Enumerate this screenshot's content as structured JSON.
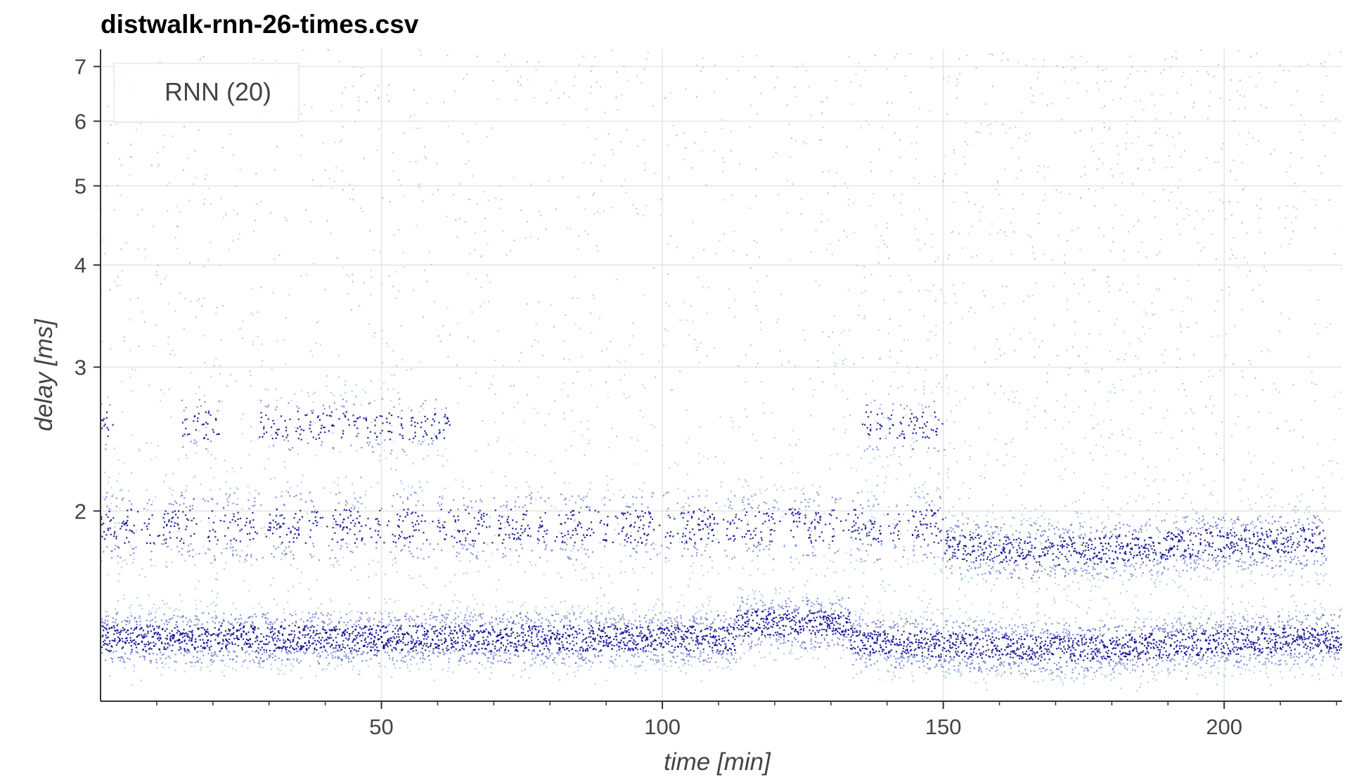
{
  "chart_data": {
    "type": "scatter",
    "title": "distwalk-rnn-26-times.csv",
    "xlabel": "time [min]",
    "ylabel": "delay [ms]",
    "x_scale": "linear",
    "y_scale": "log",
    "xlim": [
      0,
      221
    ],
    "ylim": [
      1.17,
      7.35
    ],
    "x_ticks": [
      50,
      100,
      150,
      200
    ],
    "x_tick_labels": [
      "50",
      "100",
      "150",
      "200"
    ],
    "x_minor_ticks": [
      10,
      20,
      30,
      40,
      60,
      70,
      80,
      90,
      110,
      120,
      130,
      140,
      160,
      170,
      180,
      190,
      210,
      220
    ],
    "y_ticks": [
      2,
      3,
      4,
      5,
      6,
      7
    ],
    "y_tick_labels": [
      "2",
      "3",
      "4",
      "5",
      "6",
      "7"
    ],
    "grid": true,
    "legend": {
      "entries": [
        "RNN (20)"
      ],
      "placement": "top-left"
    },
    "colors": {
      "dense": "#00008b",
      "medium": "#3a4fc0",
      "light": "#7fb7d2",
      "sparse": "#9fd0e3",
      "grid": "#e5e5e5",
      "axis": "#333333"
    },
    "series": [
      {
        "name": "RNN (20)",
        "description_bands": [
          {
            "x_range": [
              0,
              221
            ],
            "delay_center": 1.4,
            "note": "primary dense band"
          },
          {
            "x_range": [
              0,
              150
            ],
            "delay_center": 1.92,
            "note": "intermittent band"
          },
          {
            "x_range": [
              150,
              218
            ],
            "delay_center": 1.83,
            "note": "dense band"
          },
          {
            "x_range": [
              28,
              62
            ],
            "delay_center": 2.55,
            "note": "intermittent high band"
          },
          {
            "x_range": [
              135,
              150
            ],
            "delay_center": 2.55,
            "note": "intermittent high band"
          }
        ]
      }
    ]
  }
}
